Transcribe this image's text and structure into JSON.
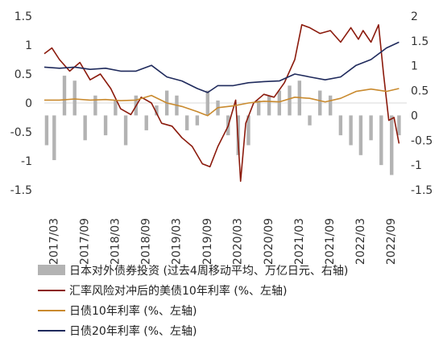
{
  "chart_data": {
    "type": "line",
    "title": "",
    "xlabel": "",
    "ylabel": "",
    "x_range": [
      "2017-01-01",
      "2022-11-30"
    ],
    "x_tick_labels": [
      "2017/03",
      "2017/09",
      "2018/03",
      "2018/09",
      "2019/03",
      "2019/09",
      "2020/03",
      "2020/09",
      "2021/03",
      "2021/09",
      "2022/03",
      "2022/09"
    ],
    "x_tick_dates": [
      "2017-03-01",
      "2017-09-01",
      "2018-03-01",
      "2018-09-01",
      "2019-03-01",
      "2019-09-01",
      "2020-03-01",
      "2020-09-01",
      "2021-03-01",
      "2021-09-01",
      "2022-03-01",
      "2022-09-01"
    ],
    "left_axis": {
      "ylim": [
        -1.5,
        1.5
      ],
      "tick_values": [
        1.5,
        1,
        0.5,
        0,
        -0.5,
        -1,
        -1.5
      ],
      "tick_labels": [
        "1.5",
        "1",
        "0.5",
        "0",
        "-0.5",
        "-1",
        "-1.5"
      ]
    },
    "right_axis": {
      "ylim": [
        -1.5,
        2
      ],
      "tick_values": [
        2,
        1.5,
        1,
        0.5,
        0,
        -0.5,
        -1,
        -1.5
      ],
      "tick_labels": [
        "2",
        "1.5",
        "1",
        "0.5",
        "0",
        "-0.5",
        "-1",
        "-1.5"
      ]
    },
    "legend_position": "bottom",
    "series": [
      {
        "name": "日本对外债券投资 (过去4周移动平均、万亿日元、右轴)",
        "kind": "bar",
        "axis": "right",
        "color": "#b3b3b3",
        "x": [
          "2017-01-15",
          "2017-03-01",
          "2017-05-01",
          "2017-07-01",
          "2017-09-01",
          "2017-11-01",
          "2018-01-01",
          "2018-03-01",
          "2018-05-01",
          "2018-07-01",
          "2018-09-01",
          "2018-11-01",
          "2019-01-01",
          "2019-03-01",
          "2019-05-01",
          "2019-07-01",
          "2019-09-01",
          "2019-11-01",
          "2020-01-01",
          "2020-03-01",
          "2020-05-01",
          "2020-07-01",
          "2020-09-01",
          "2020-11-01",
          "2021-01-01",
          "2021-03-01",
          "2021-05-01",
          "2021-07-01",
          "2021-09-01",
          "2021-11-01",
          "2022-01-01",
          "2022-03-01",
          "2022-05-01",
          "2022-07-01",
          "2022-09-01",
          "2022-10-15"
        ],
        "values": [
          -0.6,
          -0.9,
          0.8,
          0.7,
          -0.5,
          0.4,
          -0.4,
          0.3,
          -0.6,
          0.4,
          -0.3,
          0.2,
          0.5,
          0.4,
          -0.3,
          -0.2,
          0.5,
          0.3,
          -0.4,
          -0.8,
          -0.6,
          0.3,
          0.4,
          0.5,
          0.6,
          0.7,
          -0.2,
          0.5,
          0.4,
          -0.4,
          -0.6,
          -0.8,
          -0.5,
          -1.0,
          -1.2,
          -0.4
        ]
      },
      {
        "name": "汇率风险对冲后的美债10年利率 (%、左轴)",
        "kind": "line",
        "axis": "left",
        "color": "#8b1a0c",
        "x": [
          "2017-01-01",
          "2017-02-15",
          "2017-04-01",
          "2017-06-01",
          "2017-08-01",
          "2017-10-01",
          "2017-12-01",
          "2018-02-01",
          "2018-04-01",
          "2018-06-01",
          "2018-08-01",
          "2018-10-01",
          "2018-12-01",
          "2019-02-01",
          "2019-04-01",
          "2019-06-01",
          "2019-08-01",
          "2019-09-15",
          "2019-11-01",
          "2020-01-01",
          "2020-02-15",
          "2020-03-15",
          "2020-04-15",
          "2020-06-01",
          "2020-08-01",
          "2020-10-01",
          "2020-12-01",
          "2021-02-01",
          "2021-03-15",
          "2021-05-01",
          "2021-07-01",
          "2021-09-01",
          "2021-11-01",
          "2022-01-01",
          "2022-02-15",
          "2022-03-15",
          "2022-05-01",
          "2022-06-15",
          "2022-07-15",
          "2022-08-15",
          "2022-09-15",
          "2022-10-15"
        ],
        "values": [
          0.85,
          0.95,
          0.75,
          0.55,
          0.7,
          0.4,
          0.5,
          0.25,
          -0.1,
          -0.2,
          0.1,
          0.0,
          -0.35,
          -0.4,
          -0.6,
          -0.75,
          -1.05,
          -1.1,
          -0.75,
          -0.4,
          0.05,
          -1.35,
          -0.35,
          0.0,
          0.15,
          0.1,
          0.35,
          0.75,
          1.35,
          1.3,
          1.2,
          1.25,
          1.05,
          1.3,
          1.1,
          1.25,
          1.05,
          1.35,
          0.5,
          -0.3,
          -0.25,
          -0.7
        ]
      },
      {
        "name": "日债10年利率 (%、左轴)",
        "kind": "line",
        "axis": "left",
        "color": "#c98a2e",
        "x": [
          "2017-01-01",
          "2017-04-01",
          "2017-07-01",
          "2017-10-01",
          "2018-01-01",
          "2018-04-01",
          "2018-07-01",
          "2018-10-01",
          "2019-01-01",
          "2019-04-01",
          "2019-07-01",
          "2019-09-01",
          "2019-11-01",
          "2020-02-01",
          "2020-05-01",
          "2020-08-01",
          "2020-11-01",
          "2021-02-01",
          "2021-05-01",
          "2021-08-01",
          "2021-11-01",
          "2022-02-01",
          "2022-05-01",
          "2022-08-01",
          "2022-10-15"
        ],
        "values": [
          0.05,
          0.05,
          0.07,
          0.05,
          0.06,
          0.04,
          0.05,
          0.13,
          0.0,
          -0.06,
          -0.15,
          -0.22,
          -0.08,
          -0.05,
          0.0,
          0.03,
          0.02,
          0.1,
          0.08,
          0.02,
          0.08,
          0.2,
          0.24,
          0.2,
          0.25
        ]
      },
      {
        "name": "日债20年利率 (%、左轴)",
        "kind": "line",
        "axis": "left",
        "color": "#1f2a5c",
        "x": [
          "2017-01-01",
          "2017-04-01",
          "2017-07-01",
          "2017-10-01",
          "2018-01-01",
          "2018-04-01",
          "2018-07-01",
          "2018-10-01",
          "2019-01-01",
          "2019-04-01",
          "2019-07-01",
          "2019-09-01",
          "2019-11-01",
          "2020-02-01",
          "2020-05-01",
          "2020-08-01",
          "2020-11-01",
          "2021-02-01",
          "2021-05-01",
          "2021-08-01",
          "2021-11-01",
          "2022-02-01",
          "2022-05-01",
          "2022-08-01",
          "2022-10-15"
        ],
        "values": [
          0.62,
          0.6,
          0.62,
          0.58,
          0.6,
          0.55,
          0.55,
          0.65,
          0.45,
          0.38,
          0.25,
          0.18,
          0.3,
          0.3,
          0.35,
          0.37,
          0.38,
          0.5,
          0.45,
          0.4,
          0.45,
          0.65,
          0.75,
          0.95,
          1.05
        ]
      }
    ]
  }
}
